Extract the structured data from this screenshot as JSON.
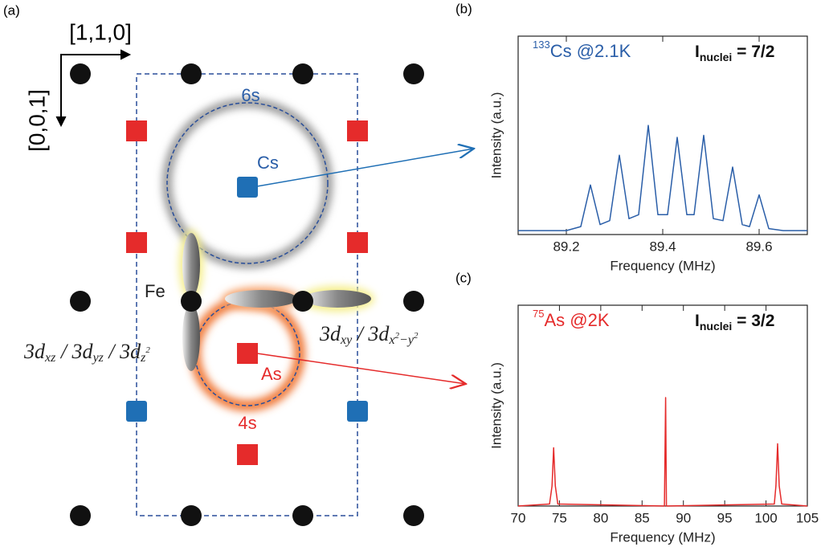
{
  "diagram": {
    "panel_label": "(a)",
    "dir_x": "[1,1,0]",
    "dir_z": "[0,0,1]",
    "orbital_6s": "6s",
    "atom_cs": "Cs",
    "atom_fe": "Fe",
    "atom_as": "As",
    "orbital_4s": "4s",
    "orbitals_left": [
      "3d",
      "xz",
      " / 3d",
      "yz",
      " / 3d",
      "z",
      "2"
    ],
    "orbitals_right": [
      "3d",
      "xy",
      " / 3d",
      "x",
      "2",
      "−y",
      "2"
    ]
  },
  "chart_data": [
    {
      "type": "line",
      "panel_label": "(b)",
      "isotope_mass": "133",
      "annotation": "Cs @2.1K",
      "spin_symbol": "I",
      "spin_subscript": "nuclei",
      "spin_value": " = 7/2",
      "xlabel": "Frequency (MHz)",
      "ylabel": "Intensity (a.u.)",
      "color": "#2a5ea8",
      "x": [
        89.1,
        89.2,
        89.23,
        89.25,
        89.27,
        89.29,
        89.31,
        89.33,
        89.35,
        89.37,
        89.39,
        89.41,
        89.43,
        89.45,
        89.465,
        89.485,
        89.505,
        89.525,
        89.545,
        89.565,
        89.58,
        89.6,
        89.62,
        89.65,
        89.7
      ],
      "values": [
        0.02,
        0.02,
        0.04,
        0.25,
        0.05,
        0.07,
        0.4,
        0.08,
        0.1,
        0.55,
        0.1,
        0.1,
        0.49,
        0.1,
        0.1,
        0.5,
        0.08,
        0.07,
        0.34,
        0.05,
        0.04,
        0.2,
        0.03,
        0.02,
        0.02
      ],
      "xlim": [
        89.1,
        89.7
      ],
      "xticks": [
        89.2,
        89.4,
        89.6
      ],
      "ylim": [
        0,
        1
      ]
    },
    {
      "type": "line",
      "panel_label": "(c)",
      "isotope_mass": "75",
      "annotation": "As @2K",
      "spin_symbol": "I",
      "spin_subscript": "nuclei",
      "spin_value": " = 3/2",
      "xlabel": "Frequency (MHz)",
      "ylabel": "Intensity (a.u.)",
      "color": "#e52b2b",
      "x": [
        70,
        73.8,
        74.1,
        74.3,
        74.5,
        74.8,
        87.7,
        87.85,
        87.95,
        101.0,
        101.2,
        101.4,
        101.6,
        101.9,
        105
      ],
      "values": [
        0,
        0.01,
        0.1,
        0.29,
        0.1,
        0.01,
        0,
        0.54,
        0,
        0.01,
        0.1,
        0.31,
        0.1,
        0.01,
        0
      ],
      "xlim": [
        70,
        105
      ],
      "xticks": [
        70,
        75,
        80,
        85,
        90,
        95,
        100,
        105
      ],
      "ylim": [
        0,
        1
      ]
    }
  ]
}
